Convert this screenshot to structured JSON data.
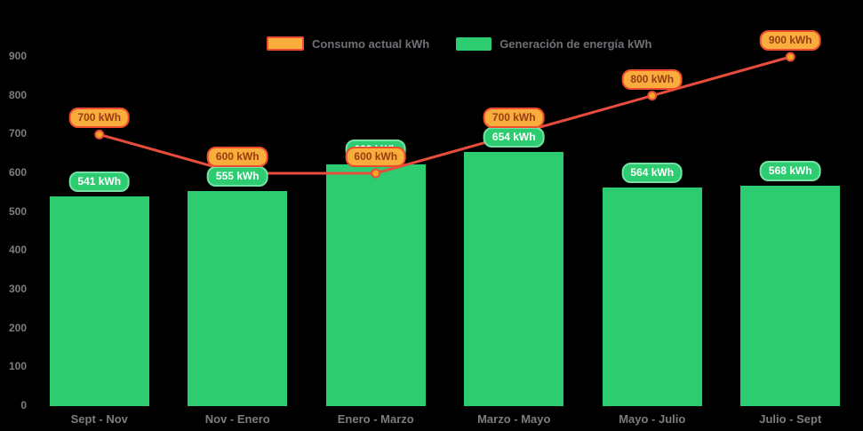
{
  "legend": {
    "items": [
      {
        "label": "Consumo actual kWh",
        "swatch_fill": "#f9ad3d",
        "swatch_border": "#ee4c2c"
      },
      {
        "label": "Generación de energía kWh",
        "swatch_fill": "#2ecc71",
        "swatch_border": null
      }
    ]
  },
  "chart_data": {
    "type": "bar",
    "subtype": "bar-with-line-overlay",
    "categories": [
      "Sept - Nov",
      "Nov - Enero",
      "Enero - Marzo",
      "Marzo - Mayo",
      "Mayo - Julio",
      "Julio - Sept"
    ],
    "series": [
      {
        "name": "Consumo actual kWh",
        "type": "line",
        "color": "#e74c3c",
        "point_fill": "#f5a623",
        "point_stroke": "#e74c3c",
        "values": [
          700,
          600,
          600,
          700,
          800,
          900
        ],
        "labels": [
          "700 kWh",
          "600 kWh",
          "600 kWh",
          "700 kWh",
          "800 kWh",
          "900 kWh"
        ]
      },
      {
        "name": "Generación de energía kWh",
        "type": "bar",
        "color": "#2ecc71",
        "values": [
          541,
          555,
          622,
          654,
          564,
          568
        ],
        "labels": [
          "541 kWh",
          "555 kWh",
          "622 kWh",
          "654 kWh",
          "564 kWh",
          "568 kWh"
        ]
      }
    ],
    "unit": "kWh",
    "ylim": [
      0,
      900
    ],
    "y_ticks": [
      0,
      100,
      200,
      300,
      400,
      500,
      600,
      700,
      800,
      900
    ],
    "grid": false,
    "legend_position": "top",
    "background": "#000000",
    "axis_text_color": "#7d7d7d"
  }
}
